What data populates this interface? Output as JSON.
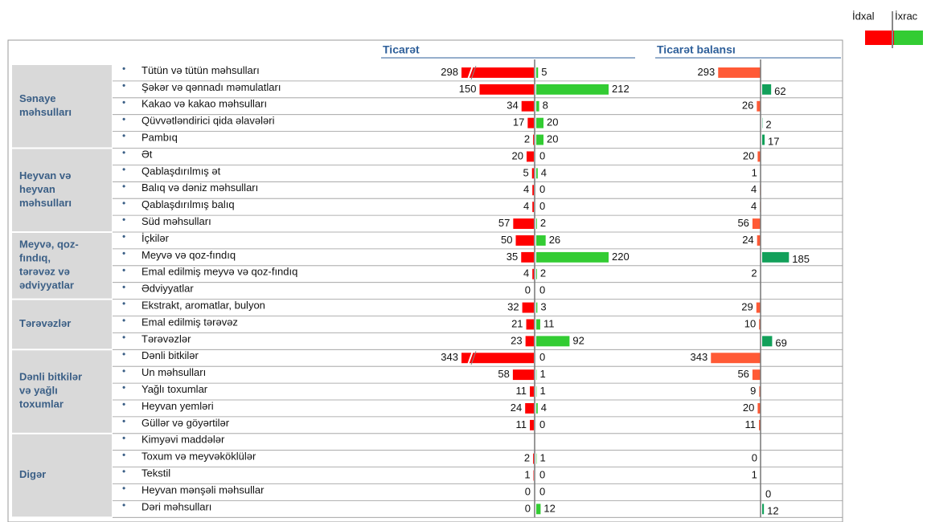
{
  "chart_data": {
    "type": "bar",
    "trade_header": "Ticarət",
    "categories": [
      "Tütün və tütün məhsulları",
      "Şəkər və qənnadı məmulatları",
      "Kakao və kakao məhsulları",
      "Qüvvətləndirici qida əlavələri",
      "Pambıq",
      "Ət",
      "Qablaşdırılmış ət",
      "Balıq və dəniz məhsulları",
      "Qablaşdırılmış balıq",
      "Süd məhsulları",
      "İçkilər",
      "Meyvə və qoz-fındıq",
      "Emal edilmiş meyvə və qoz-fındıq",
      "Ədviyyatlar",
      "Ekstrakt, aromatlar, bulyon",
      "Emal edilmiş tərəvəz",
      "Tərəvəzlər",
      "Dənli bitkilər",
      "Un məhsulları",
      "Yağlı toxumlar",
      "Heyvan yemləri",
      "Güllər və göyərtilər",
      "Kimyəvi maddələr",
      "Toxum və meyvəköklülər",
      "Tekstil",
      "Heyvan mənşəli məhsullar",
      "Dəri məhsulları"
    ],
    "groups": [
      {
        "label": "Sənaye\nməhsulları",
        "size": 5
      },
      {
        "label": "Heyvan və\nheyvan\nməhsulları",
        "size": 5
      },
      {
        "label": "Meyvə, qoz-\nfındıq,\ntərəvəz və\nədviyyatlar",
        "size": 4
      },
      {
        "label": "Tərəvəzlər",
        "size": 3
      },
      {
        "label": "Dənli bitkilər\nvə yağlı\ntoxumlar",
        "size": 5
      },
      {
        "label": "Digər",
        "size": 5
      }
    ],
    "series": [
      {
        "name": "İdxal",
        "color": "#ff0000",
        "values": [
          298,
          150,
          34,
          17,
          2,
          20,
          5,
          4,
          4,
          57,
          50,
          35,
          4,
          0,
          32,
          21,
          23,
          343,
          58,
          11,
          24,
          11,
          null,
          2,
          1,
          0,
          0
        ]
      },
      {
        "name": "İxrac",
        "color": "#33cc33",
        "values": [
          5,
          212,
          8,
          20,
          20,
          0,
          4,
          0,
          0,
          2,
          26,
          220,
          2,
          0,
          3,
          11,
          92,
          0,
          1,
          1,
          4,
          0,
          null,
          1,
          0,
          0,
          12
        ]
      },
      {
        "name": "Ticarət balansı",
        "color": "#ff5a36",
        "positive_color": "#12a05a",
        "values": [
          293,
          62,
          26,
          2,
          17,
          20,
          1,
          4,
          4,
          56,
          24,
          185,
          2,
          null,
          29,
          10,
          69,
          343,
          56,
          9,
          20,
          11,
          null,
          0,
          1,
          0,
          12
        ]
      }
    ]
  }
}
